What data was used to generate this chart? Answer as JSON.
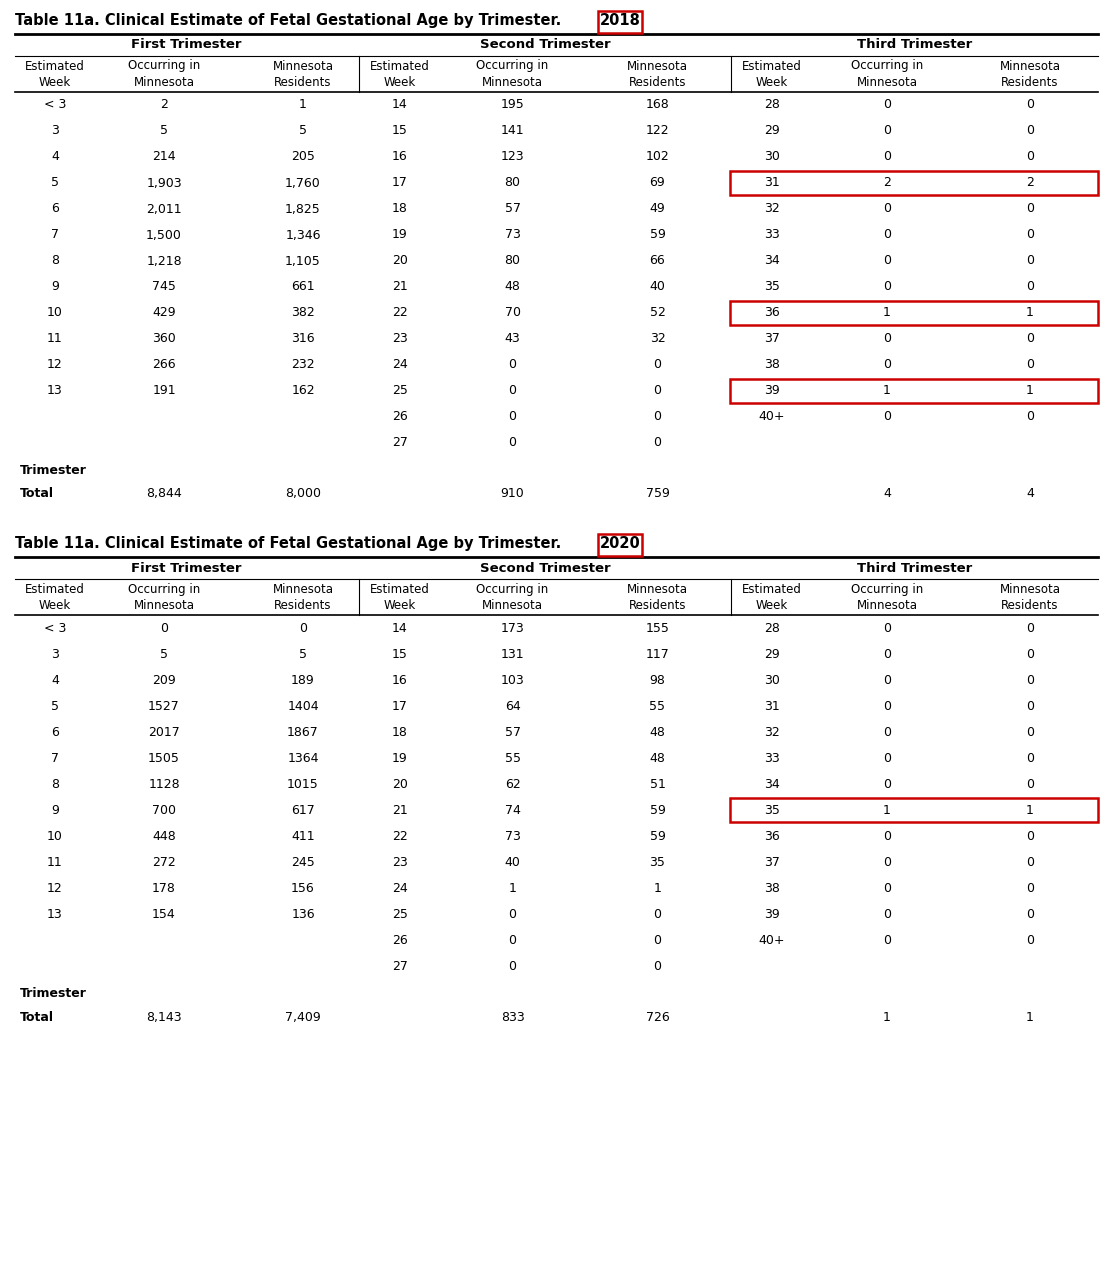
{
  "title_prefix": "Table 11a. Clinical Estimate of Fetal Gestational Age by Trimester.",
  "title_2018_year": "2018",
  "title_2020_year": "2020",
  "col_headers": [
    "Estimated\nWeek",
    "Occurring in\nMinnesota",
    "Minnesota\nResidents"
  ],
  "trimester_headers": [
    "First Trimester",
    "Second Trimester",
    "Third Trimester"
  ],
  "table_2018": {
    "first": [
      [
        "< 3",
        "2",
        "1"
      ],
      [
        "3",
        "5",
        "5"
      ],
      [
        "4",
        "214",
        "205"
      ],
      [
        "5",
        "1,903",
        "1,760"
      ],
      [
        "6",
        "2,011",
        "1,825"
      ],
      [
        "7",
        "1,500",
        "1,346"
      ],
      [
        "8",
        "1,218",
        "1,105"
      ],
      [
        "9",
        "745",
        "661"
      ],
      [
        "10",
        "429",
        "382"
      ],
      [
        "11",
        "360",
        "316"
      ],
      [
        "12",
        "266",
        "232"
      ],
      [
        "13",
        "191",
        "162"
      ]
    ],
    "second": [
      [
        "14",
        "195",
        "168"
      ],
      [
        "15",
        "141",
        "122"
      ],
      [
        "16",
        "123",
        "102"
      ],
      [
        "17",
        "80",
        "69"
      ],
      [
        "18",
        "57",
        "49"
      ],
      [
        "19",
        "73",
        "59"
      ],
      [
        "20",
        "80",
        "66"
      ],
      [
        "21",
        "48",
        "40"
      ],
      [
        "22",
        "70",
        "52"
      ],
      [
        "23",
        "43",
        "32"
      ],
      [
        "24",
        "0",
        "0"
      ],
      [
        "25",
        "0",
        "0"
      ],
      [
        "26",
        "0",
        "0"
      ],
      [
        "27",
        "0",
        "0"
      ]
    ],
    "third": [
      [
        "28",
        "0",
        "0"
      ],
      [
        "29",
        "0",
        "0"
      ],
      [
        "30",
        "0",
        "0"
      ],
      [
        "31",
        "2",
        "2"
      ],
      [
        "32",
        "0",
        "0"
      ],
      [
        "33",
        "0",
        "0"
      ],
      [
        "34",
        "0",
        "0"
      ],
      [
        "35",
        "0",
        "0"
      ],
      [
        "36",
        "1",
        "1"
      ],
      [
        "37",
        "0",
        "0"
      ],
      [
        "38",
        "0",
        "0"
      ],
      [
        "39",
        "1",
        "1"
      ],
      [
        "40+",
        "0",
        "0"
      ]
    ],
    "totals": [
      "8,844",
      "8,000",
      "910",
      "759",
      "4",
      "4"
    ],
    "highlight_rows_third": [
      3,
      8,
      11
    ]
  },
  "table_2020": {
    "first": [
      [
        "< 3",
        "0",
        "0"
      ],
      [
        "3",
        "5",
        "5"
      ],
      [
        "4",
        "209",
        "189"
      ],
      [
        "5",
        "1527",
        "1404"
      ],
      [
        "6",
        "2017",
        "1867"
      ],
      [
        "7",
        "1505",
        "1364"
      ],
      [
        "8",
        "1128",
        "1015"
      ],
      [
        "9",
        "700",
        "617"
      ],
      [
        "10",
        "448",
        "411"
      ],
      [
        "11",
        "272",
        "245"
      ],
      [
        "12",
        "178",
        "156"
      ],
      [
        "13",
        "154",
        "136"
      ]
    ],
    "second": [
      [
        "14",
        "173",
        "155"
      ],
      [
        "15",
        "131",
        "117"
      ],
      [
        "16",
        "103",
        "98"
      ],
      [
        "17",
        "64",
        "55"
      ],
      [
        "18",
        "57",
        "48"
      ],
      [
        "19",
        "55",
        "48"
      ],
      [
        "20",
        "62",
        "51"
      ],
      [
        "21",
        "74",
        "59"
      ],
      [
        "22",
        "73",
        "59"
      ],
      [
        "23",
        "40",
        "35"
      ],
      [
        "24",
        "1",
        "1"
      ],
      [
        "25",
        "0",
        "0"
      ],
      [
        "26",
        "0",
        "0"
      ],
      [
        "27",
        "0",
        "0"
      ]
    ],
    "third": [
      [
        "28",
        "0",
        "0"
      ],
      [
        "29",
        "0",
        "0"
      ],
      [
        "30",
        "0",
        "0"
      ],
      [
        "31",
        "0",
        "0"
      ],
      [
        "32",
        "0",
        "0"
      ],
      [
        "33",
        "0",
        "0"
      ],
      [
        "34",
        "0",
        "0"
      ],
      [
        "35",
        "1",
        "1"
      ],
      [
        "36",
        "0",
        "0"
      ],
      [
        "37",
        "0",
        "0"
      ],
      [
        "38",
        "0",
        "0"
      ],
      [
        "39",
        "0",
        "0"
      ],
      [
        "40+",
        "0",
        "0"
      ]
    ],
    "totals": [
      "8,143",
      "7,409",
      "833",
      "726",
      "1",
      "1"
    ],
    "highlight_rows_third": [
      7
    ]
  },
  "year_box_color": "#cc0000",
  "highlight_box_color": "#cc0000",
  "bg_color": "#ffffff",
  "text_color": "#000000"
}
